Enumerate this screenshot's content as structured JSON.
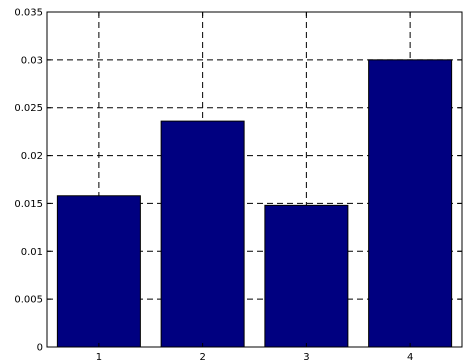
{
  "chart_data": {
    "type": "bar",
    "title": "",
    "xlabel": "",
    "ylabel": "",
    "categories": [
      "1",
      "2",
      "3",
      "4"
    ],
    "values": [
      0.0158,
      0.0236,
      0.0148,
      0.03
    ],
    "ylim": [
      0,
      0.035
    ],
    "yticks": [
      0,
      0.005,
      0.01,
      0.015,
      0.02,
      0.025,
      0.03,
      0.035
    ],
    "ytick_labels": [
      "0",
      "0.005",
      "0.01",
      "0.015",
      "0.02",
      "0.025",
      "0.03",
      "0.035"
    ],
    "grid": true,
    "legend": "none",
    "colors": {
      "bar": "#000080",
      "grid": "#000000",
      "axis": "#000000",
      "background": "#ffffff"
    }
  }
}
